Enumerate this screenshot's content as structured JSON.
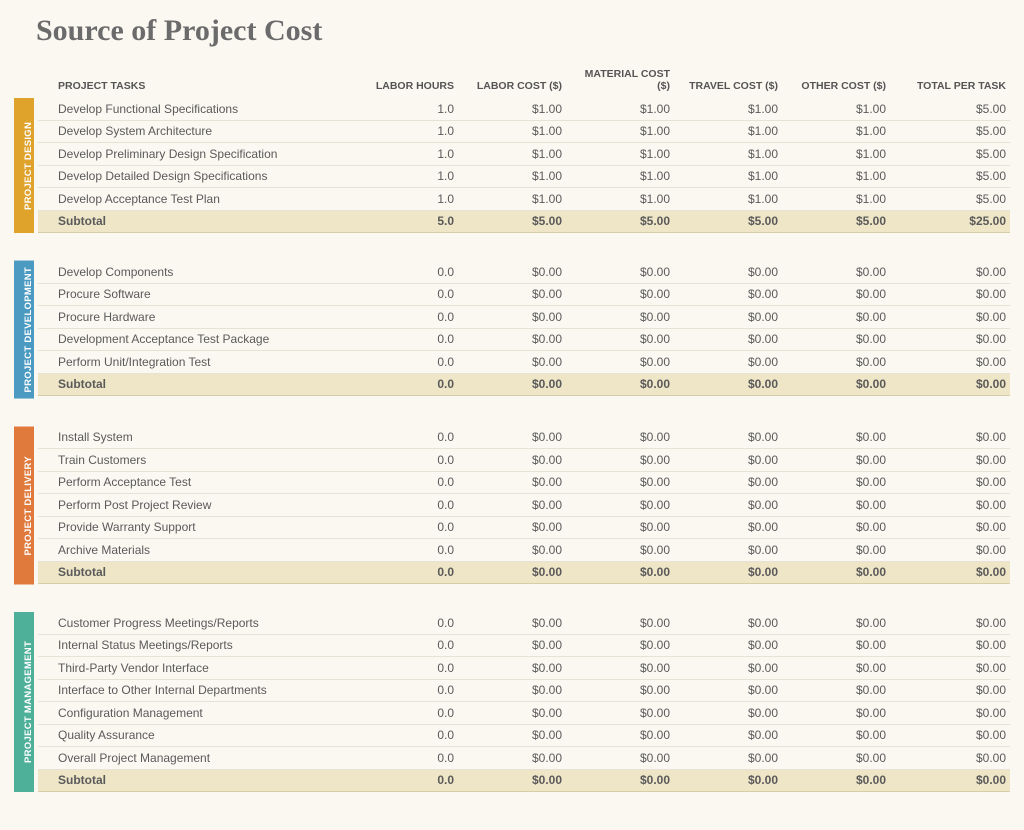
{
  "title": "Source of Project Cost",
  "columns": {
    "task": "PROJECT TASKS",
    "labor_hours": "LABOR HOURS",
    "labor_cost": "LABOR COST ($)",
    "material_cost": "MATERIAL COST ($)",
    "travel_cost": "TRAVEL COST ($)",
    "other_cost": "OTHER COST ($)",
    "total": "TOTAL PER TASK"
  },
  "sections": [
    {
      "id": "design",
      "label": "PROJECT DESIGN",
      "color": "#dfa32c",
      "rows": [
        {
          "task": "Develop Functional Specifications",
          "labor_hours": "1.0",
          "labor_cost": "$1.00",
          "material_cost": "$1.00",
          "travel_cost": "$1.00",
          "other_cost": "$1.00",
          "total": "$5.00"
        },
        {
          "task": "Develop System Architecture",
          "labor_hours": "1.0",
          "labor_cost": "$1.00",
          "material_cost": "$1.00",
          "travel_cost": "$1.00",
          "other_cost": "$1.00",
          "total": "$5.00"
        },
        {
          "task": "Develop Preliminary Design Specification",
          "labor_hours": "1.0",
          "labor_cost": "$1.00",
          "material_cost": "$1.00",
          "travel_cost": "$1.00",
          "other_cost": "$1.00",
          "total": "$5.00"
        },
        {
          "task": "Develop Detailed Design Specifications",
          "labor_hours": "1.0",
          "labor_cost": "$1.00",
          "material_cost": "$1.00",
          "travel_cost": "$1.00",
          "other_cost": "$1.00",
          "total": "$5.00"
        },
        {
          "task": "Develop Acceptance Test Plan",
          "labor_hours": "1.0",
          "labor_cost": "$1.00",
          "material_cost": "$1.00",
          "travel_cost": "$1.00",
          "other_cost": "$1.00",
          "total": "$5.00"
        }
      ],
      "subtotal": {
        "task": "Subtotal",
        "labor_hours": "5.0",
        "labor_cost": "$5.00",
        "material_cost": "$5.00",
        "travel_cost": "$5.00",
        "other_cost": "$5.00",
        "total": "$25.00"
      }
    },
    {
      "id": "development",
      "label": "PROJECT DEVELOPMENT",
      "color": "#4a9ac2",
      "rows": [
        {
          "task": "Develop Components",
          "labor_hours": "0.0",
          "labor_cost": "$0.00",
          "material_cost": "$0.00",
          "travel_cost": "$0.00",
          "other_cost": "$0.00",
          "total": "$0.00"
        },
        {
          "task": "Procure Software",
          "labor_hours": "0.0",
          "labor_cost": "$0.00",
          "material_cost": "$0.00",
          "travel_cost": "$0.00",
          "other_cost": "$0.00",
          "total": "$0.00"
        },
        {
          "task": "Procure Hardware",
          "labor_hours": "0.0",
          "labor_cost": "$0.00",
          "material_cost": "$0.00",
          "travel_cost": "$0.00",
          "other_cost": "$0.00",
          "total": "$0.00"
        },
        {
          "task": "Development Acceptance Test Package",
          "labor_hours": "0.0",
          "labor_cost": "$0.00",
          "material_cost": "$0.00",
          "travel_cost": "$0.00",
          "other_cost": "$0.00",
          "total": "$0.00"
        },
        {
          "task": "Perform Unit/Integration Test",
          "labor_hours": "0.0",
          "labor_cost": "$0.00",
          "material_cost": "$0.00",
          "travel_cost": "$0.00",
          "other_cost": "$0.00",
          "total": "$0.00"
        }
      ],
      "subtotal": {
        "task": "Subtotal",
        "labor_hours": "0.0",
        "labor_cost": "$0.00",
        "material_cost": "$0.00",
        "travel_cost": "$0.00",
        "other_cost": "$0.00",
        "total": "$0.00"
      }
    },
    {
      "id": "delivery",
      "label": "PROJECT DELIVERY",
      "color": "#e07a3c",
      "rows": [
        {
          "task": "Install System",
          "labor_hours": "0.0",
          "labor_cost": "$0.00",
          "material_cost": "$0.00",
          "travel_cost": "$0.00",
          "other_cost": "$0.00",
          "total": "$0.00"
        },
        {
          "task": "Train Customers",
          "labor_hours": "0.0",
          "labor_cost": "$0.00",
          "material_cost": "$0.00",
          "travel_cost": "$0.00",
          "other_cost": "$0.00",
          "total": "$0.00"
        },
        {
          "task": "Perform Acceptance Test",
          "labor_hours": "0.0",
          "labor_cost": "$0.00",
          "material_cost": "$0.00",
          "travel_cost": "$0.00",
          "other_cost": "$0.00",
          "total": "$0.00"
        },
        {
          "task": "Perform Post Project Review",
          "labor_hours": "0.0",
          "labor_cost": "$0.00",
          "material_cost": "$0.00",
          "travel_cost": "$0.00",
          "other_cost": "$0.00",
          "total": "$0.00"
        },
        {
          "task": "Provide Warranty Support",
          "labor_hours": "0.0",
          "labor_cost": "$0.00",
          "material_cost": "$0.00",
          "travel_cost": "$0.00",
          "other_cost": "$0.00",
          "total": "$0.00"
        },
        {
          "task": "Archive Materials",
          "labor_hours": "0.0",
          "labor_cost": "$0.00",
          "material_cost": "$0.00",
          "travel_cost": "$0.00",
          "other_cost": "$0.00",
          "total": "$0.00"
        }
      ],
      "subtotal": {
        "task": "Subtotal",
        "labor_hours": "0.0",
        "labor_cost": "$0.00",
        "material_cost": "$0.00",
        "travel_cost": "$0.00",
        "other_cost": "$0.00",
        "total": "$0.00"
      }
    },
    {
      "id": "management",
      "label": "PROJECT MANAGEMENT",
      "color": "#4fb09a",
      "rows": [
        {
          "task": "Customer Progress Meetings/Reports",
          "labor_hours": "0.0",
          "labor_cost": "$0.00",
          "material_cost": "$0.00",
          "travel_cost": "$0.00",
          "other_cost": "$0.00",
          "total": "$0.00"
        },
        {
          "task": "Internal Status Meetings/Reports",
          "labor_hours": "0.0",
          "labor_cost": "$0.00",
          "material_cost": "$0.00",
          "travel_cost": "$0.00",
          "other_cost": "$0.00",
          "total": "$0.00"
        },
        {
          "task": "Third-Party Vendor Interface",
          "labor_hours": "0.0",
          "labor_cost": "$0.00",
          "material_cost": "$0.00",
          "travel_cost": "$0.00",
          "other_cost": "$0.00",
          "total": "$0.00"
        },
        {
          "task": "Interface to Other Internal Departments",
          "labor_hours": "0.0",
          "labor_cost": "$0.00",
          "material_cost": "$0.00",
          "travel_cost": "$0.00",
          "other_cost": "$0.00",
          "total": "$0.00"
        },
        {
          "task": "Configuration Management",
          "labor_hours": "0.0",
          "labor_cost": "$0.00",
          "material_cost": "$0.00",
          "travel_cost": "$0.00",
          "other_cost": "$0.00",
          "total": "$0.00"
        },
        {
          "task": "Quality Assurance",
          "labor_hours": "0.0",
          "labor_cost": "$0.00",
          "material_cost": "$0.00",
          "travel_cost": "$0.00",
          "other_cost": "$0.00",
          "total": "$0.00"
        },
        {
          "task": "Overall Project Management",
          "labor_hours": "0.0",
          "labor_cost": "$0.00",
          "material_cost": "$0.00",
          "travel_cost": "$0.00",
          "other_cost": "$0.00",
          "total": "$0.00"
        }
      ],
      "subtotal": {
        "task": "Subtotal",
        "labor_hours": "0.0",
        "labor_cost": "$0.00",
        "material_cost": "$0.00",
        "travel_cost": "$0.00",
        "other_cost": "$0.00",
        "total": "$0.00"
      }
    }
  ],
  "styles": {
    "page_background": "#fbf8f2",
    "subtotal_background": "#efe6c7",
    "row_border": "#e7e2d6",
    "text_color": "#5a5a5a",
    "title_color": "#6b6b6b",
    "title_fontsize": 30,
    "body_fontsize": 12,
    "header_fontsize": 10.5,
    "vlabel_fontsize": 9.5
  }
}
